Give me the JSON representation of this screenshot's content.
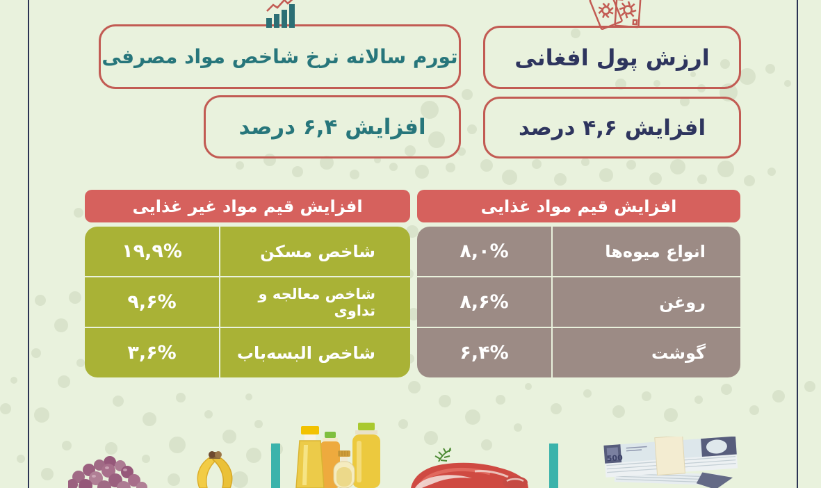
{
  "infographic": {
    "currency": {
      "title": "ارزش پول افغانی",
      "change": "افزایش ۴,۶ درصد"
    },
    "inflation": {
      "title": "تورم سالانه نرخ شاخص مواد مصرفی",
      "change": "افزایش ۶,۴ درصد"
    },
    "food_table": {
      "header": "افزایش قیم مواد غذایی",
      "rows": [
        {
          "label": "انواع میوه‌ها",
          "value": "۸,۰%"
        },
        {
          "label": "روغن",
          "value": "۸,۶%"
        },
        {
          "label": "گوشت",
          "value": "۶,۴%"
        }
      ]
    },
    "nonfood_table": {
      "header": "افزایش قیم مواد غیر غذایی",
      "rows": [
        {
          "label": "شاخص مسکن",
          "value": "۱۹,۹%"
        },
        {
          "label": "شاخص معالجه و تداوی",
          "value": "۹,۶%"
        },
        {
          "label": "شاخص البسه‌باب",
          "value": "۳,۶%"
        }
      ]
    },
    "banknote_value": "500"
  },
  "colors": {
    "background": "#e9f2dd",
    "accent_red": "#c25b53",
    "header_red": "#d6615d",
    "navy": "#2e355e",
    "teal_text": "#27767b",
    "teal_bar": "#3bb3ab",
    "olive_row": "#a9b236",
    "taupe_row": "#9c8b85",
    "frame_line": "#2b3353"
  },
  "chart_data": [
    {
      "type": "table",
      "title": "افزایش قیم مواد غذایی",
      "categories": [
        "انواع میوه‌ها",
        "روغن",
        "گوشت"
      ],
      "values": [
        8.0,
        8.6,
        6.4
      ],
      "unit": "%"
    },
    {
      "type": "table",
      "title": "افزایش قیم مواد غیر غذایی",
      "categories": [
        "شاخص مسکن",
        "شاخص معالجه و تداوی",
        "شاخص البسه‌باب"
      ],
      "values": [
        19.9,
        9.6,
        3.6
      ],
      "unit": "%"
    },
    {
      "type": "table",
      "title": "ارزش پول افغانی",
      "categories": [
        "افزایش"
      ],
      "values": [
        4.6
      ],
      "unit": "%"
    },
    {
      "type": "table",
      "title": "تورم سالانه نرخ شاخص مواد مصرفی",
      "categories": [
        "افزایش"
      ],
      "values": [
        6.4
      ],
      "unit": "%"
    }
  ]
}
